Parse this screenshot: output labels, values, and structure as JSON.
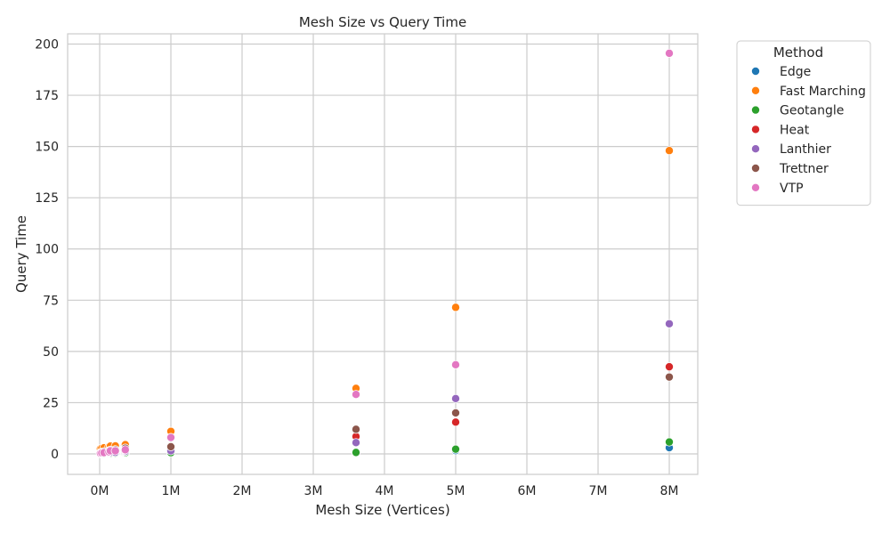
{
  "chart_data": {
    "type": "scatter",
    "title": "Mesh Size vs Query Time",
    "xlabel": "Mesh Size (Vertices)",
    "ylabel": "Query Time",
    "xlim": [
      -450000,
      8400000
    ],
    "ylim": [
      -10,
      205
    ],
    "x_ticks": [
      0,
      1000000,
      2000000,
      3000000,
      4000000,
      5000000,
      6000000,
      7000000,
      8000000
    ],
    "x_tick_labels": [
      "0M",
      "1M",
      "2M",
      "3M",
      "4M",
      "5M",
      "6M",
      "7M",
      "8M"
    ],
    "y_ticks": [
      0,
      25,
      50,
      75,
      100,
      125,
      150,
      175,
      200
    ],
    "y_tick_labels": [
      "0",
      "25",
      "50",
      "75",
      "100",
      "125",
      "150",
      "175",
      "200"
    ],
    "grid": true,
    "legend": {
      "title": "Method",
      "placement": "upper right, outside plot"
    },
    "series": [
      {
        "name": "Edge",
        "color": "#1f77b4",
        "points": [
          [
            10000,
            0.1
          ],
          [
            30000,
            0.2
          ],
          [
            60000,
            0.3
          ],
          [
            130000,
            0.4
          ],
          [
            150000,
            0.5
          ],
          [
            220000,
            0.5
          ],
          [
            350000,
            0.6
          ],
          [
            360000,
            0.8
          ],
          [
            1000000,
            0.9
          ],
          [
            3600000,
            0.9
          ],
          [
            5000000,
            1.6
          ],
          [
            8000000,
            3.0
          ]
        ]
      },
      {
        "name": "Fast Marching",
        "color": "#ff7f0e",
        "points": [
          [
            10000,
            2.5
          ],
          [
            30000,
            2.8
          ],
          [
            60000,
            3.0
          ],
          [
            130000,
            3.5
          ],
          [
            150000,
            3.8
          ],
          [
            220000,
            3.9
          ],
          [
            350000,
            4.2
          ],
          [
            360000,
            4.5
          ],
          [
            1000000,
            11.0
          ],
          [
            3600000,
            32.0
          ],
          [
            5000000,
            71.5
          ],
          [
            8000000,
            148.0
          ]
        ]
      },
      {
        "name": "Geotangle",
        "color": "#2ca02c",
        "points": [
          [
            10000,
            0.1
          ],
          [
            30000,
            0.2
          ],
          [
            60000,
            0.2
          ],
          [
            130000,
            0.3
          ],
          [
            150000,
            0.3
          ],
          [
            220000,
            0.4
          ],
          [
            350000,
            0.4
          ],
          [
            360000,
            0.5
          ],
          [
            1000000,
            0.6
          ],
          [
            3600000,
            0.7
          ],
          [
            5000000,
            2.3
          ],
          [
            8000000,
            5.8
          ]
        ]
      },
      {
        "name": "Heat",
        "color": "#d62728",
        "points": [
          [
            10000,
            0.3
          ],
          [
            30000,
            0.5
          ],
          [
            60000,
            0.6
          ],
          [
            130000,
            0.8
          ],
          [
            150000,
            1.0
          ],
          [
            220000,
            1.1
          ],
          [
            350000,
            1.3
          ],
          [
            360000,
            1.5
          ],
          [
            1000000,
            2.8
          ],
          [
            3600000,
            8.5
          ],
          [
            5000000,
            15.5
          ],
          [
            8000000,
            42.5
          ]
        ]
      },
      {
        "name": "Lanthier",
        "color": "#9467bd",
        "points": [
          [
            10000,
            0.2
          ],
          [
            30000,
            0.4
          ],
          [
            60000,
            0.5
          ],
          [
            130000,
            0.6
          ],
          [
            150000,
            0.7
          ],
          [
            220000,
            0.8
          ],
          [
            350000,
            1.0
          ],
          [
            360000,
            1.2
          ],
          [
            1000000,
            1.5
          ],
          [
            3600000,
            5.5
          ],
          [
            5000000,
            27.0
          ],
          [
            8000000,
            63.5
          ]
        ]
      },
      {
        "name": "Trettner",
        "color": "#8c564b",
        "points": [
          [
            10000,
            0.5
          ],
          [
            30000,
            0.8
          ],
          [
            60000,
            1.0
          ],
          [
            130000,
            1.5
          ],
          [
            150000,
            1.8
          ],
          [
            220000,
            2.0
          ],
          [
            350000,
            2.5
          ],
          [
            360000,
            2.8
          ],
          [
            1000000,
            3.5
          ],
          [
            3600000,
            12.0
          ],
          [
            5000000,
            20.0
          ],
          [
            8000000,
            37.5
          ]
        ]
      },
      {
        "name": "VTP",
        "color": "#e377c2",
        "points": [
          [
            10000,
            0.3
          ],
          [
            30000,
            0.5
          ],
          [
            60000,
            0.6
          ],
          [
            130000,
            1.0
          ],
          [
            150000,
            1.5
          ],
          [
            220000,
            1.5
          ],
          [
            350000,
            1.8
          ],
          [
            360000,
            2.0
          ],
          [
            1000000,
            8.0
          ],
          [
            3600000,
            29.0
          ],
          [
            5000000,
            43.5
          ],
          [
            8000000,
            195.5
          ]
        ]
      }
    ]
  }
}
